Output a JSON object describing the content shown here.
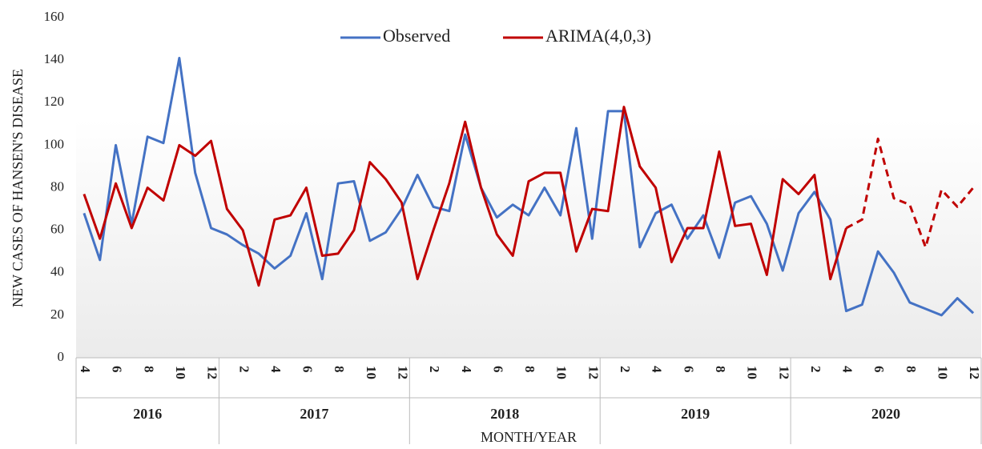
{
  "chart_data": {
    "type": "line",
    "x_label": "MONTH/YEAR",
    "y_label": "NEW CASES OF HANSEN'S DISEASE",
    "groups": [
      {
        "name": "2016",
        "categories": [
          "4",
          null,
          "6",
          null,
          "8",
          null,
          "10",
          null,
          "12"
        ]
      },
      {
        "name": "2017",
        "categories": [
          null,
          "2",
          null,
          "4",
          null,
          "6",
          null,
          "8",
          null,
          "10",
          null,
          "12"
        ]
      },
      {
        "name": "2018",
        "categories": [
          null,
          "2",
          null,
          "4",
          null,
          "6",
          null,
          "8",
          null,
          "10",
          null,
          "12"
        ]
      },
      {
        "name": "2019",
        "categories": [
          null,
          "2",
          null,
          "4",
          null,
          "6",
          null,
          "8",
          null,
          "10",
          null,
          "12"
        ]
      },
      {
        "name": "2020",
        "categories": [
          null,
          "2",
          null,
          "4",
          null,
          "6",
          null,
          "8",
          null,
          "10",
          null,
          "12"
        ]
      }
    ],
    "series": [
      {
        "name": "Observed",
        "color": "#4472c4",
        "values": [
          68,
          46,
          100,
          63,
          104,
          101,
          141,
          87,
          61,
          58,
          53,
          49,
          42,
          48,
          68,
          37,
          82,
          83,
          55,
          59,
          70,
          86,
          71,
          69,
          105,
          80,
          66,
          72,
          67,
          80,
          67,
          108,
          56,
          116,
          116,
          52,
          68,
          72,
          56,
          67,
          47,
          73,
          76,
          63,
          41,
          68,
          78,
          65,
          22,
          25,
          50,
          40,
          26,
          23,
          20,
          28,
          21
        ]
      },
      {
        "name": "ARIMA(4,0,3)",
        "color": "#c00000",
        "dashed_from": 48,
        "values": [
          77,
          56,
          82,
          61,
          80,
          74,
          100,
          95,
          102,
          70,
          60,
          34,
          65,
          67,
          80,
          48,
          49,
          60,
          92,
          84,
          73,
          37,
          60,
          82,
          111,
          80,
          58,
          48,
          83,
          87,
          87,
          50,
          70,
          69,
          118,
          90,
          80,
          45,
          61,
          61,
          97,
          62,
          63,
          39,
          84,
          77,
          86,
          37,
          61,
          65,
          103,
          75,
          72,
          52,
          79,
          71,
          80
        ]
      }
    ],
    "ylim": [
      0,
      160
    ],
    "yticks": [
      0,
      20,
      40,
      60,
      80,
      100,
      120,
      140,
      160
    ],
    "legend": "top"
  }
}
